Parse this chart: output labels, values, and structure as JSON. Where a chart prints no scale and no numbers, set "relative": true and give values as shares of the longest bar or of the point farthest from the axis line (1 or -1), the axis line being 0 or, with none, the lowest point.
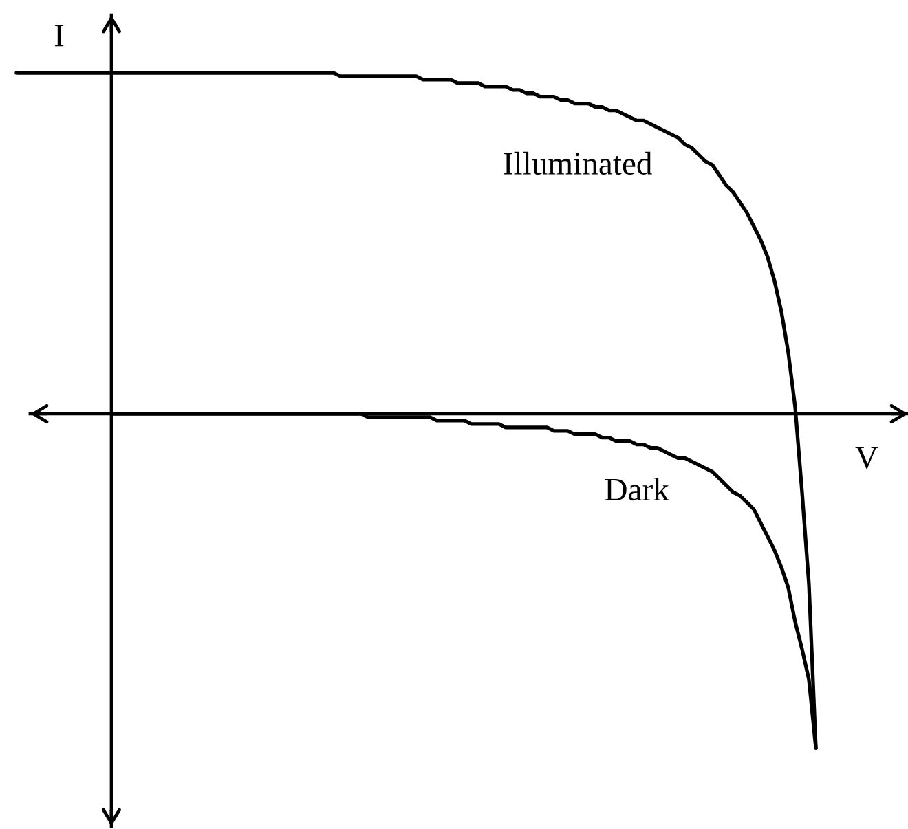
{
  "chart_data": {
    "type": "line",
    "relative": true,
    "xlabel": "V",
    "ylabel": "I",
    "line_style": "solid",
    "categories": [
      null,
      null,
      null,
      null,
      null,
      null,
      null,
      null,
      null,
      null,
      null,
      null,
      null,
      null,
      null,
      null,
      null,
      null,
      null,
      null,
      null,
      null,
      null,
      null,
      null,
      null,
      null,
      null,
      null,
      null,
      null,
      null,
      null,
      null,
      null,
      null,
      null,
      null,
      null,
      null,
      null,
      null,
      null,
      null,
      null,
      null,
      null,
      null,
      null,
      null,
      null,
      null,
      null,
      null,
      null,
      null,
      null,
      null,
      null,
      null,
      null,
      null,
      null,
      null,
      null,
      null,
      null,
      null,
      null,
      null,
      null,
      null,
      null,
      null,
      null,
      null,
      null,
      null,
      null,
      null,
      null,
      null,
      null,
      null,
      null,
      null,
      null,
      null,
      null,
      null,
      null,
      null,
      null,
      null,
      null,
      null,
      null,
      null,
      null,
      null,
      null,
      null,
      null,
      null,
      null,
      null,
      null,
      null,
      null,
      null,
      null,
      null,
      null,
      null,
      null,
      null,
      null
    ],
    "series": [
      {
        "name": "Illuminated",
        "color": "#000000",
        "values": [
          1.0,
          1.0,
          1.0,
          1.0,
          1.0,
          1.0,
          1.0,
          1.0,
          1.0,
          1.0,
          1.0,
          1.0,
          1.0,
          1.0,
          1.0,
          1.0,
          1.0,
          1.0,
          1.0,
          1.0,
          1.0,
          1.0,
          1.0,
          1.0,
          1.0,
          1.0,
          1.0,
          1.0,
          1.0,
          1.0,
          1.0,
          1.0,
          1.0,
          1.0,
          1.0,
          1.0,
          1.0,
          1.0,
          1.0,
          1.0,
          1.0,
          1.0,
          1.0,
          1.0,
          1.0,
          1.0,
          1.0,
          0.99,
          0.99,
          0.99,
          0.99,
          0.99,
          0.99,
          0.99,
          0.99,
          0.99,
          0.99,
          0.99,
          0.99,
          0.98,
          0.98,
          0.98,
          0.98,
          0.98,
          0.97,
          0.97,
          0.97,
          0.97,
          0.96,
          0.96,
          0.96,
          0.96,
          0.95,
          0.95,
          0.94,
          0.94,
          0.93,
          0.93,
          0.93,
          0.92,
          0.92,
          0.91,
          0.91,
          0.91,
          0.9,
          0.9,
          0.89,
          0.89,
          0.88,
          0.87,
          0.86,
          0.86,
          0.85,
          0.84,
          0.83,
          0.82,
          0.81,
          0.79,
          0.78,
          0.76,
          0.74,
          0.73,
          0.7,
          0.67,
          0.65,
          0.62,
          0.59,
          0.55,
          0.51,
          0.46,
          0.39,
          0.3,
          0.18,
          0.02,
          -0.23,
          -0.5,
          -0.98
        ]
      },
      {
        "name": "Dark",
        "color": "#000000",
        "values": [
          null,
          null,
          null,
          null,
          null,
          null,
          null,
          null,
          null,
          null,
          null,
          null,
          null,
          null,
          0.0,
          0.0,
          0.0,
          0.0,
          0.0,
          0.0,
          0.0,
          0.0,
          0.0,
          0.0,
          0.0,
          0.0,
          0.0,
          0.0,
          0.0,
          0.0,
          0.0,
          0.0,
          0.0,
          0.0,
          0.0,
          0.0,
          0.0,
          0.0,
          0.0,
          0.0,
          0.0,
          0.0,
          0.0,
          0.0,
          0.0,
          0.0,
          0.0,
          0.0,
          0.0,
          0.0,
          0.0,
          -0.01,
          -0.01,
          -0.01,
          -0.01,
          -0.01,
          -0.01,
          -0.01,
          -0.01,
          -0.01,
          -0.01,
          -0.02,
          -0.02,
          -0.02,
          -0.02,
          -0.02,
          -0.03,
          -0.03,
          -0.03,
          -0.03,
          -0.03,
          -0.04,
          -0.04,
          -0.04,
          -0.04,
          -0.04,
          -0.04,
          -0.04,
          -0.05,
          -0.05,
          -0.05,
          -0.06,
          -0.06,
          -0.06,
          -0.06,
          -0.07,
          -0.07,
          -0.08,
          -0.08,
          -0.08,
          -0.09,
          -0.09,
          -0.1,
          -0.1,
          -0.11,
          -0.12,
          -0.13,
          -0.13,
          -0.14,
          -0.15,
          -0.16,
          -0.17,
          -0.19,
          -0.21,
          -0.23,
          -0.24,
          -0.26,
          -0.28,
          -0.32,
          -0.36,
          -0.4,
          -0.45,
          -0.51,
          -0.61,
          -0.69,
          -0.78,
          -0.98
        ]
      }
    ]
  }
}
